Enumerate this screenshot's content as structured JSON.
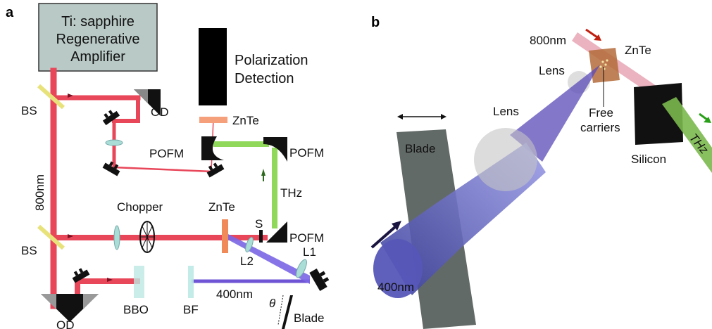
{
  "panel_a": {
    "letter": "a",
    "laser_line1": "Ti: sapphire",
    "laser_line2": "Regenerative",
    "laser_line3": "Amplifier",
    "detector_line1": "Polarization",
    "detector_line2": "Detection",
    "bs_top": "BS",
    "bs_bottom": "BS",
    "od_top": "OD",
    "od_bottom": "OD",
    "beam_800": "800nm",
    "znte_top": "ZnTe",
    "pofm_left": "POFM",
    "pofm_right": "POFM",
    "pofm_bottom": "POFM",
    "thz": "THz",
    "chopper": "Chopper",
    "znte_mid": "ZnTe",
    "s": "S",
    "l2": "L2",
    "l1": "L1",
    "bbo": "BBO",
    "bf": "BF",
    "beam_400": "400nm",
    "theta": "θ",
    "blade": "Blade"
  },
  "panel_b": {
    "letter": "b",
    "beam_800": "800nm",
    "znte": "ZnTe",
    "lens_small": "Lens",
    "lens_big": "Lens",
    "free_line1": "Free",
    "free_line2": "carriers",
    "blade": "Blade",
    "silicon": "Silicon",
    "thz": "THz",
    "beam_400": "400nm"
  },
  "colors": {
    "red_beam": "#e8475a",
    "violet_beam": "#6f55d6",
    "green_beam": "#8fd85a",
    "laser_box": "#b9c9c6",
    "blade_gray": "#6a7270"
  }
}
